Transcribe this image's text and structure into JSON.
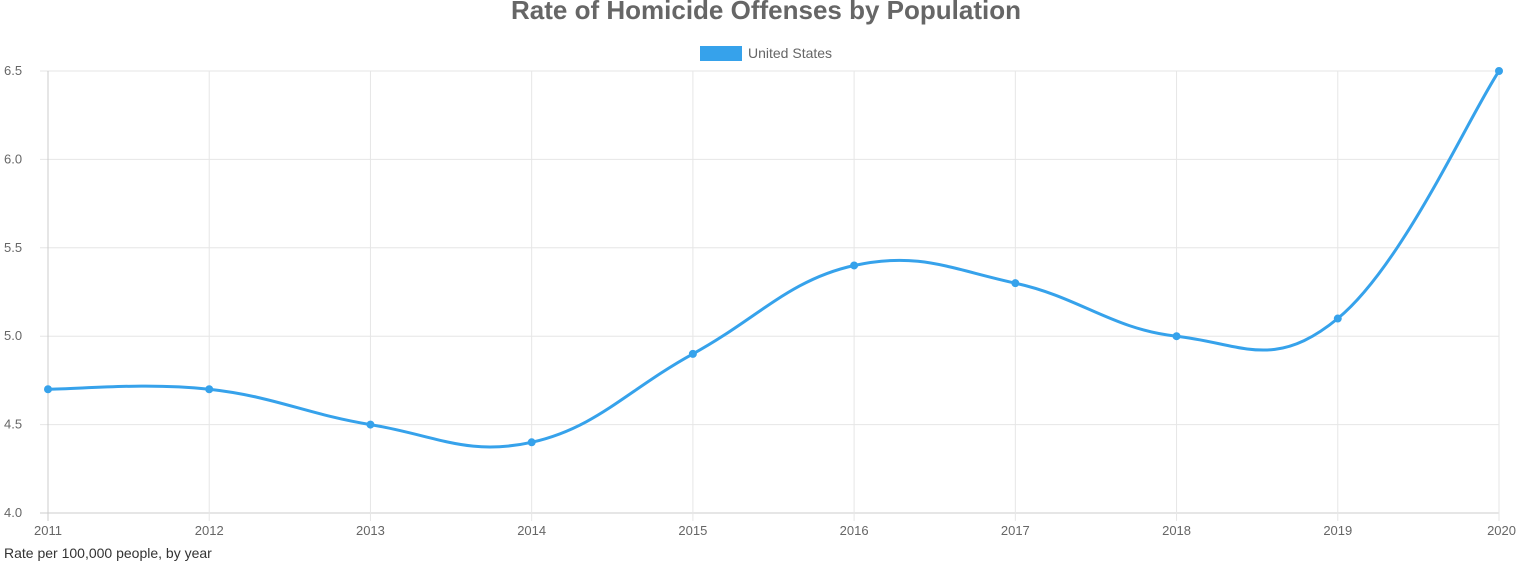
{
  "chart_data": {
    "type": "line",
    "title": "Rate of Homicide Offenses by Population",
    "x": [
      "2011",
      "2012",
      "2013",
      "2014",
      "2015",
      "2016",
      "2017",
      "2018",
      "2019",
      "2020"
    ],
    "series": [
      {
        "name": "United States",
        "color": "#36a2eb",
        "values": [
          4.7,
          4.7,
          4.5,
          4.4,
          4.9,
          5.4,
          5.3,
          5.0,
          5.1,
          6.5
        ]
      }
    ],
    "ylim": [
      4.0,
      6.5
    ],
    "yticks": [
      "4.0",
      "4.5",
      "5.0",
      "5.5",
      "6.0",
      "6.5"
    ],
    "ytick_values": [
      4.0,
      4.5,
      5.0,
      5.5,
      6.0,
      6.5
    ],
    "grid": true,
    "legend_position": "top-center",
    "xlabel": "",
    "ylabel": ""
  },
  "footnote": "Rate per 100,000 people, by year"
}
